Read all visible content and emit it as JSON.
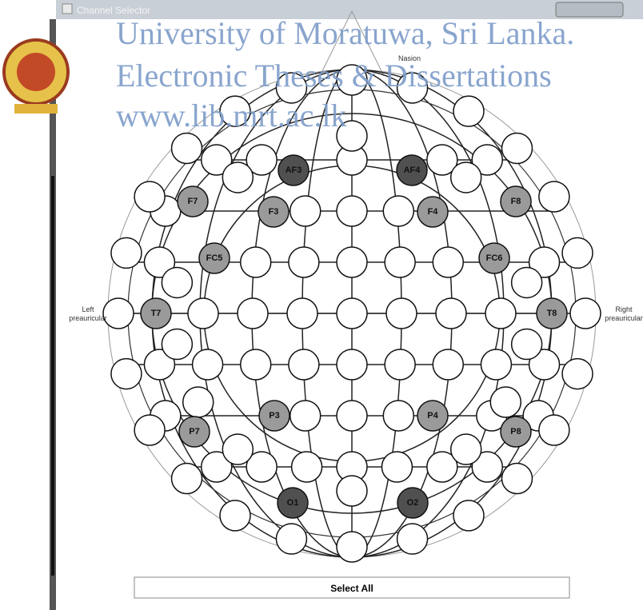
{
  "window": {
    "title": "Channel Selector"
  },
  "watermark": [
    "University of Moratuwa, Sri Lanka.",
    "Electronic Theses & Dissertations",
    "www.lib.mrt.ac.lk"
  ],
  "landmarks": {
    "nasion": "Nasion",
    "left": [
      "Left",
      "preauricular"
    ],
    "right": [
      "Right",
      "preauricular"
    ]
  },
  "electrodes": [
    "AF3",
    "AF4",
    "F7",
    "F3",
    "F4",
    "F8",
    "FC5",
    "FC6",
    "T7",
    "T8",
    "P3",
    "P4",
    "P7",
    "P8",
    "O1",
    "O2"
  ],
  "button": "Select All"
}
